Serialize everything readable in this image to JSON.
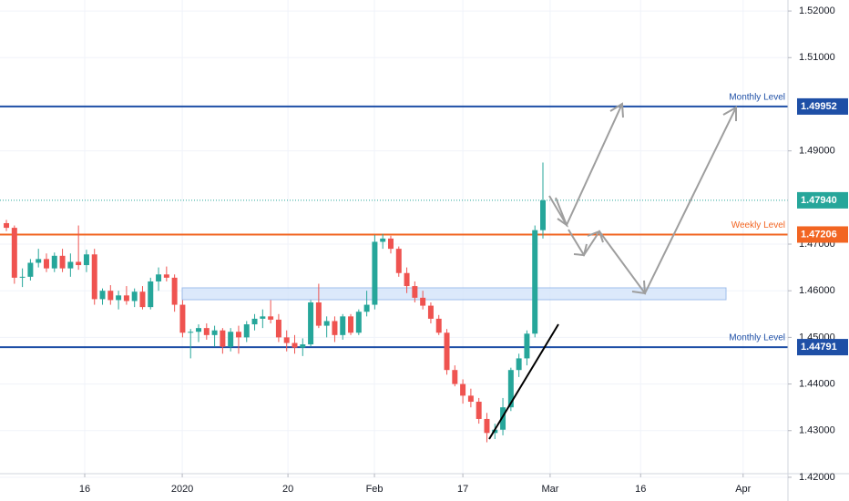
{
  "chart_data": {
    "type": "candlestick",
    "up_color": "#26a69a",
    "down_color": "#ef5350",
    "open": [
      1.4745,
      1.4735,
      1.4628,
      1.463,
      1.466,
      1.4668,
      1.4648,
      1.4675,
      1.4648,
      1.4662,
      1.4655,
      1.4678,
      1.4582,
      1.46,
      1.458,
      1.459,
      1.4578,
      1.4598,
      1.4565,
      1.462,
      1.4635,
      1.4628,
      1.457,
      1.451,
      1.4512,
      1.452,
      1.4505,
      1.4515,
      1.448,
      1.4512,
      1.45,
      1.4528,
      1.454,
      1.4545,
      1.4538,
      1.45,
      1.4488,
      1.4478,
      1.4485,
      1.4575,
      1.4525,
      1.4535,
      1.4505,
      1.4545,
      1.451,
      1.4555,
      1.457,
      1.4705,
      1.4712,
      1.469,
      1.4638,
      1.461,
      1.4585,
      1.4568,
      1.454,
      1.451,
      1.443,
      1.44,
      1.4375,
      1.4362,
      1.4325,
      1.4295,
      1.4302,
      1.435,
      1.443,
      1.4455,
      1.4508,
      1.473
    ],
    "high": [
      1.4752,
      1.474,
      1.4648,
      1.4668,
      1.469,
      1.468,
      1.4682,
      1.469,
      1.468,
      1.474,
      1.4688,
      1.469,
      1.4605,
      1.4612,
      1.46,
      1.461,
      1.4605,
      1.461,
      1.4628,
      1.465,
      1.4652,
      1.4635,
      1.458,
      1.4518,
      1.4528,
      1.453,
      1.4525,
      1.452,
      1.452,
      1.4525,
      1.4535,
      1.455,
      1.456,
      1.458,
      1.455,
      1.4515,
      1.4505,
      1.4498,
      1.458,
      1.4615,
      1.4545,
      1.4545,
      1.455,
      1.455,
      1.456,
      1.46,
      1.472,
      1.4722,
      1.4718,
      1.4695,
      1.465,
      1.462,
      1.46,
      1.4575,
      1.4548,
      1.4518,
      1.444,
      1.441,
      1.439,
      1.437,
      1.4338,
      1.4315,
      1.437,
      1.4435,
      1.4465,
      1.4515,
      1.474,
      1.4875
    ],
    "low": [
      1.4728,
      1.4615,
      1.4608,
      1.4622,
      1.465,
      1.464,
      1.464,
      1.464,
      1.463,
      1.4645,
      1.464,
      1.457,
      1.457,
      1.457,
      1.456,
      1.457,
      1.4565,
      1.456,
      1.456,
      1.46,
      1.462,
      1.4555,
      1.45,
      1.4455,
      1.449,
      1.4495,
      1.448,
      1.4465,
      1.447,
      1.4465,
      1.449,
      1.4515,
      1.452,
      1.453,
      1.449,
      1.447,
      1.4465,
      1.446,
      1.448,
      1.452,
      1.45,
      1.449,
      1.4495,
      1.4505,
      1.4505,
      1.4545,
      1.456,
      1.469,
      1.468,
      1.463,
      1.4595,
      1.4575,
      1.456,
      1.453,
      1.4505,
      1.442,
      1.4395,
      1.4358,
      1.435,
      1.4315,
      1.4275,
      1.4282,
      1.429,
      1.4342,
      1.4415,
      1.444,
      1.45,
      1.4712
    ],
    "close": [
      1.4735,
      1.4628,
      1.463,
      1.466,
      1.4668,
      1.4648,
      1.4675,
      1.4648,
      1.4662,
      1.4655,
      1.4678,
      1.4582,
      1.46,
      1.458,
      1.459,
      1.4578,
      1.4598,
      1.4565,
      1.462,
      1.4635,
      1.4628,
      1.457,
      1.451,
      1.4512,
      1.452,
      1.4505,
      1.4515,
      1.448,
      1.4512,
      1.45,
      1.4528,
      1.454,
      1.4545,
      1.4538,
      1.45,
      1.4488,
      1.4478,
      1.4485,
      1.4575,
      1.4525,
      1.4535,
      1.4505,
      1.4545,
      1.451,
      1.4555,
      1.457,
      1.4705,
      1.4712,
      1.469,
      1.4638,
      1.461,
      1.4585,
      1.4568,
      1.454,
      1.451,
      1.443,
      1.44,
      1.4375,
      1.4362,
      1.4325,
      1.4295,
      1.4302,
      1.435,
      1.443,
      1.4455,
      1.4508,
      1.473,
      1.4794
    ],
    "xlim": [
      -0.8,
      97.6
    ],
    "xticks": [
      {
        "value": 9.78,
        "label": "16"
      },
      {
        "value": 21.96,
        "label": "2020"
      },
      {
        "value": 35.16,
        "label": "20"
      },
      {
        "value": 45.96,
        "label": "Feb"
      },
      {
        "value": 57.0,
        "label": "17"
      },
      {
        "value": 67.9,
        "label": "Mar"
      },
      {
        "value": 79.2,
        "label": "16"
      },
      {
        "value": 92.0,
        "label": "Apr"
      }
    ],
    "ylim": [
      1.42077,
      1.52236
    ],
    "yticks": [
      {
        "value": 1.52,
        "label": "1.52000"
      },
      {
        "value": 1.51,
        "label": "1.51000"
      },
      {
        "value": 1.49,
        "label": "1.49000"
      },
      {
        "value": 1.47,
        "label": "1.47000"
      },
      {
        "value": 1.46,
        "label": "1.46000"
      },
      {
        "value": 1.45,
        "label": "1.45000"
      },
      {
        "value": 1.44,
        "label": "1.44000"
      },
      {
        "value": 1.43,
        "label": "1.43000"
      },
      {
        "value": 1.42,
        "label": "1.42000"
      }
    ],
    "levels": [
      {
        "value": 1.49952,
        "label": "1.49952",
        "text": "Monthly Level",
        "color": "#1e4fa6",
        "style": "solid"
      },
      {
        "value": 1.47206,
        "label": "1.47206",
        "text": "Weekly Level",
        "color": "#f26522",
        "style": "solid"
      },
      {
        "value": 1.44791,
        "label": "1.44791",
        "text": "Monthly Level",
        "color": "#1e4fa6",
        "style": "solid"
      },
      {
        "value": 1.4794,
        "label": "1.47940",
        "color": "#26a69a",
        "style": "dotted"
      }
    ]
  }
}
